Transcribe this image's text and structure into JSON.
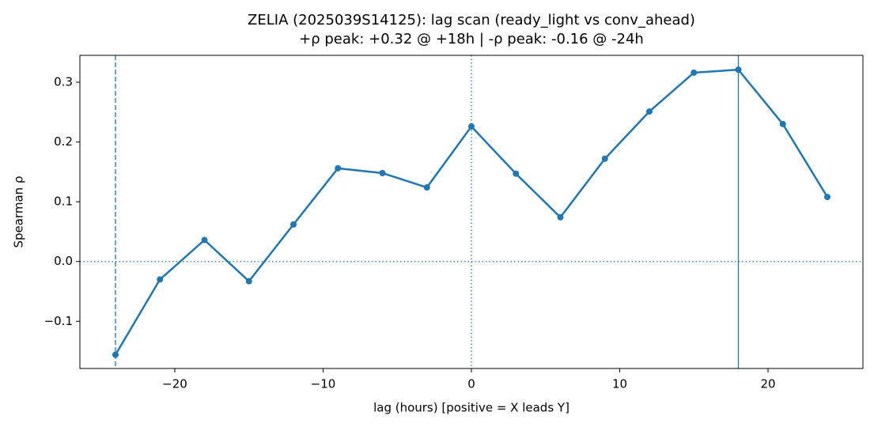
{
  "chart_data": {
    "type": "line",
    "title": "ZELIA (2025039S14125): lag scan (ready_light vs conv_ahead)",
    "subtitle": "+ρ peak: +0.32 @ +18h | -ρ peak: -0.16 @ -24h",
    "x_label": "lag (hours) [positive = X leads Y]",
    "y_label": "Spearman ρ",
    "x": [
      -24,
      -21,
      -18,
      -15,
      -12,
      -9,
      -6,
      -3,
      0,
      3,
      6,
      9,
      12,
      15,
      18,
      21,
      24
    ],
    "series": [
      {
        "name": "lag scan",
        "color": "#1f77b4",
        "values": [
          -0.156,
          -0.03,
          0.036,
          -0.033,
          0.062,
          0.156,
          0.148,
          0.124,
          0.226,
          0.147,
          0.074,
          0.172,
          0.251,
          0.316,
          0.321,
          0.23,
          0.108
        ]
      }
    ],
    "xlim": [
      -26.4,
      26.4
    ],
    "ylim": [
      -0.179,
      0.345
    ],
    "xticks": [
      {
        "value": -20,
        "label": "−20"
      },
      {
        "value": -10,
        "label": "−10"
      },
      0,
      10,
      20
    ],
    "yticks": [
      {
        "value": -0.1,
        "label": "−0.1"
      },
      {
        "value": 0,
        "label": "0.0"
      },
      0.1,
      0.2,
      0.3
    ],
    "vlines": [
      {
        "x": -24,
        "style": "dashed"
      },
      {
        "x": 0,
        "style": "dotted"
      },
      {
        "x": 18,
        "style": "solid"
      }
    ],
    "hlines": [
      {
        "y": 0,
        "style": "dotted"
      }
    ],
    "grid": false
  }
}
